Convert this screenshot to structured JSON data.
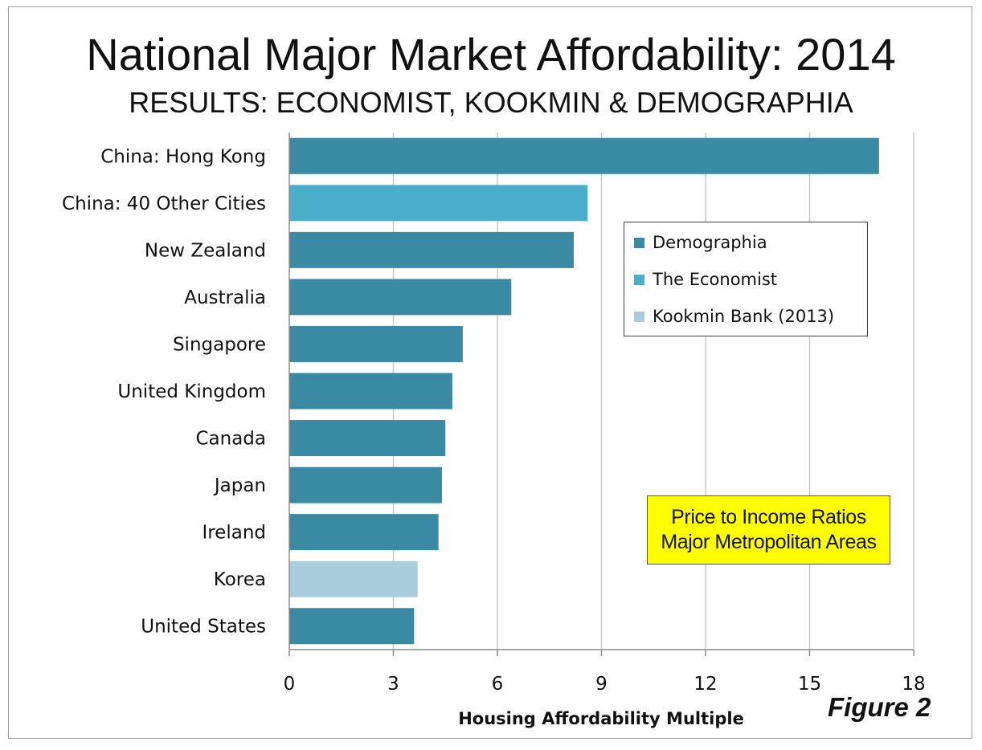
{
  "chart_data": {
    "type": "bar",
    "orientation": "horizontal",
    "title": "National Major Market Affordability: 2014",
    "subtitle": "RESULTS: ECONOMIST, KOOKMIN & DEMOGRAPHIA",
    "xlabel": "Housing Affordability Multiple",
    "ylabel": "",
    "xlim": [
      0,
      18
    ],
    "xticks": [
      0,
      3,
      6,
      9,
      12,
      15,
      18
    ],
    "grid": true,
    "legend_position": "right",
    "categories": [
      "China: Hong Kong",
      "China: 40 Other Cities",
      "New Zealand",
      "Australia",
      "Singapore",
      "United Kingdom",
      "Canada",
      "Japan",
      "Ireland",
      "Korea",
      "United States"
    ],
    "values": [
      17.0,
      8.6,
      8.2,
      6.4,
      5.0,
      4.7,
      4.5,
      4.4,
      4.3,
      3.7,
      3.6
    ],
    "sources": [
      "Demographia",
      "The Economist",
      "Demographia",
      "Demographia",
      "Demographia",
      "Demographia",
      "Demographia",
      "Demographia",
      "Demographia",
      "Kookmin Bank (2013)",
      "Demographia"
    ],
    "series_legend": [
      {
        "name": "Demographia",
        "color": "#3a8aa3"
      },
      {
        "name": "The Economist",
        "color": "#4aaecb"
      },
      {
        "name": "Kookmin Bank (2013)",
        "color": "#a9cddc"
      }
    ],
    "annotation_lines": [
      "Price to Income Ratios",
      "Major Metropolitan Areas"
    ],
    "figure_label": "Figure 2"
  }
}
